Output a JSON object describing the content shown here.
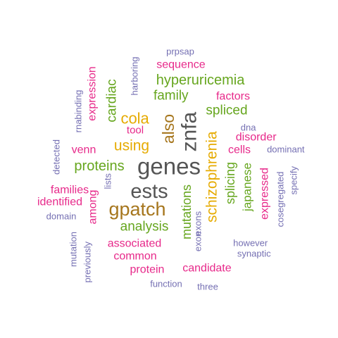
{
  "palette": {
    "gray": "#555555",
    "brown": "#a6761d",
    "gold": "#e6ab02",
    "green": "#66a61e",
    "magenta": "#e7298a",
    "purple": "#7570b3"
  },
  "words": [
    {
      "text": "genes",
      "color": "#555555"
    },
    {
      "text": "ests",
      "color": "#555555"
    },
    {
      "text": "znfa",
      "color": "#555555"
    },
    {
      "text": "gpatch",
      "color": "#a6761d"
    },
    {
      "text": "also",
      "color": "#a6761d"
    },
    {
      "text": "schizophrenia",
      "color": "#e6ab02"
    },
    {
      "text": "cola",
      "color": "#e6ab02"
    },
    {
      "text": "using",
      "color": "#e6ab02"
    },
    {
      "text": "hyperuricemia",
      "color": "#66a61e"
    },
    {
      "text": "family",
      "color": "#66a61e"
    },
    {
      "text": "spliced",
      "color": "#66a61e"
    },
    {
      "text": "proteins",
      "color": "#66a61e"
    },
    {
      "text": "analysis",
      "color": "#66a61e"
    },
    {
      "text": "mutations",
      "color": "#66a61e"
    },
    {
      "text": "splicing",
      "color": "#66a61e"
    },
    {
      "text": "japanese",
      "color": "#66a61e"
    },
    {
      "text": "cardiac",
      "color": "#66a61e"
    },
    {
      "text": "sequence",
      "color": "#e7298a"
    },
    {
      "text": "factors",
      "color": "#e7298a"
    },
    {
      "text": "tool",
      "color": "#e7298a"
    },
    {
      "text": "disorder",
      "color": "#e7298a"
    },
    {
      "text": "cells",
      "color": "#e7298a"
    },
    {
      "text": "venn",
      "color": "#e7298a"
    },
    {
      "text": "families",
      "color": "#e7298a"
    },
    {
      "text": "identified",
      "color": "#e7298a"
    },
    {
      "text": "among",
      "color": "#e7298a"
    },
    {
      "text": "expressed",
      "color": "#e7298a"
    },
    {
      "text": "associated",
      "color": "#e7298a"
    },
    {
      "text": "common",
      "color": "#e7298a"
    },
    {
      "text": "protein",
      "color": "#e7298a"
    },
    {
      "text": "candidate",
      "color": "#e7298a"
    },
    {
      "text": "expression",
      "color": "#e7298a"
    },
    {
      "text": "prpsap",
      "color": "#7570b3"
    },
    {
      "text": "harboring",
      "color": "#7570b3"
    },
    {
      "text": "rnabinding",
      "color": "#7570b3"
    },
    {
      "text": "dna",
      "color": "#7570b3"
    },
    {
      "text": "dominant",
      "color": "#7570b3"
    },
    {
      "text": "detected",
      "color": "#7570b3"
    },
    {
      "text": "lists",
      "color": "#7570b3"
    },
    {
      "text": "cosegregated",
      "color": "#7570b3"
    },
    {
      "text": "specify",
      "color": "#7570b3"
    },
    {
      "text": "domain",
      "color": "#7570b3"
    },
    {
      "text": "exon",
      "color": "#7570b3"
    },
    {
      "text": "exons",
      "color": "#7570b3"
    },
    {
      "text": "however",
      "color": "#7570b3"
    },
    {
      "text": "synaptic",
      "color": "#7570b3"
    },
    {
      "text": "mutation",
      "color": "#7570b3"
    },
    {
      "text": "previously",
      "color": "#7570b3"
    },
    {
      "text": "function",
      "color": "#7570b3"
    },
    {
      "text": "three",
      "color": "#7570b3"
    }
  ]
}
